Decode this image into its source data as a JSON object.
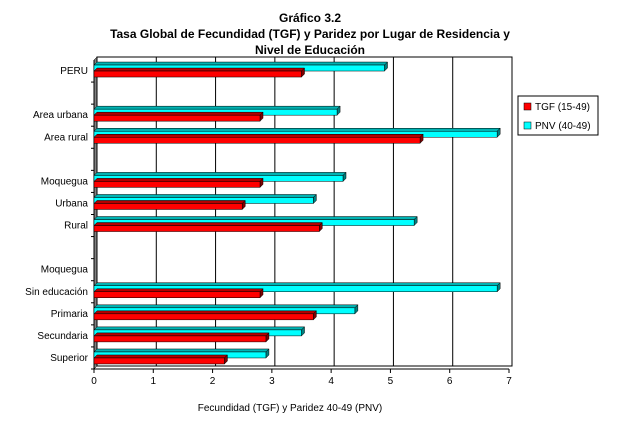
{
  "chart_data": {
    "type": "bar",
    "orientation": "horizontal",
    "title": [
      "Gráfico 3.2",
      "Tasa Global de Fecundidad (TGF) y Paridez por Lugar de Residencia y",
      "Nivel de Educación"
    ],
    "xlabel": "Fecundidad (TGF) y Paridez 40-49 (PNV)",
    "ylabel": "",
    "xlim": [
      0,
      7
    ],
    "xticks": [
      "0",
      "1",
      "2",
      "3",
      "4",
      "5",
      "6",
      "7"
    ],
    "grid": true,
    "legend_position": "right",
    "categories": [
      "PERU",
      "",
      "Area urbana",
      "Area rural",
      "",
      "Moquegua",
      "Urbana",
      "Rural",
      "",
      "Moquegua",
      "Sin educación",
      "Primaria",
      "Secundaria",
      "Superior"
    ],
    "series": [
      {
        "name": "TGF (15-49)",
        "color": "#ff0000",
        "values": [
          3.5,
          null,
          2.8,
          5.5,
          null,
          2.8,
          2.5,
          3.8,
          null,
          null,
          2.8,
          3.7,
          2.9,
          2.2
        ]
      },
      {
        "name": "PNV (40-49)",
        "color": "#00ffff",
        "values": [
          4.9,
          null,
          4.1,
          6.8,
          null,
          4.2,
          3.7,
          5.4,
          null,
          null,
          6.8,
          4.4,
          3.5,
          2.9
        ]
      }
    ]
  }
}
